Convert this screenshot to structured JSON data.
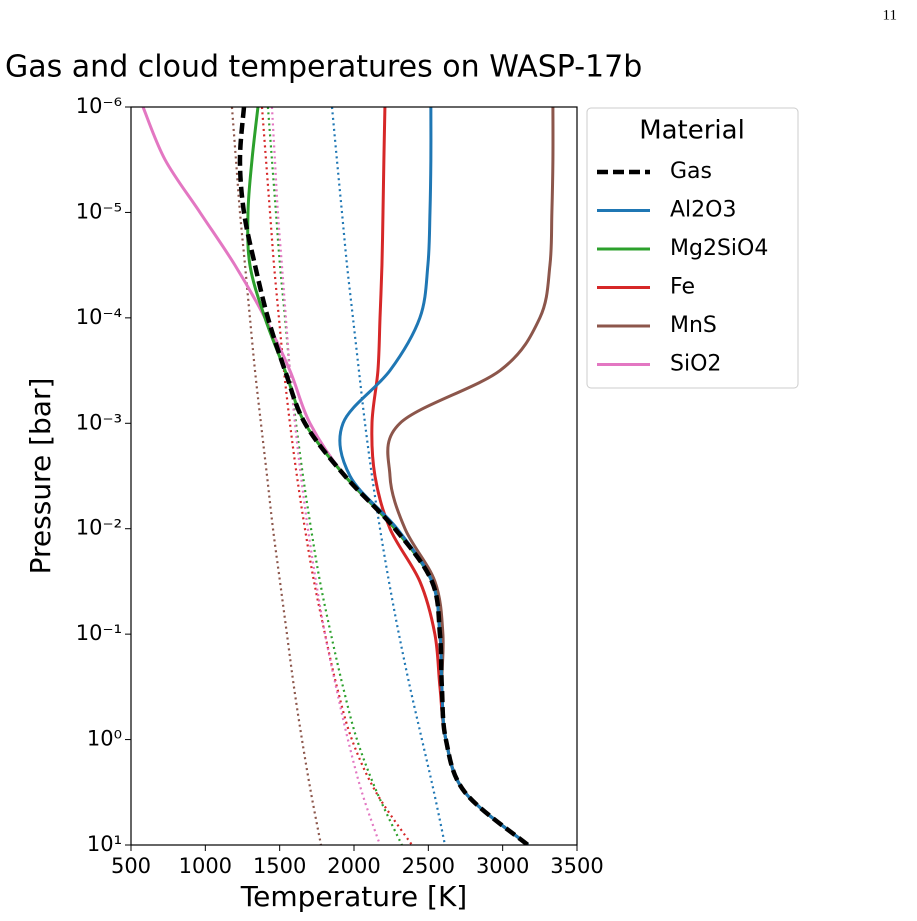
{
  "page_number": "11",
  "chart_data": {
    "type": "line",
    "title": "Gas and cloud temperatures on WASP-17b",
    "x_label": "Temperature [K]",
    "y_label": "Pressure [bar]",
    "xlim": [
      500,
      3500
    ],
    "xticks": [
      500,
      1000,
      1500,
      2000,
      2500,
      3000,
      3500
    ],
    "ylim": [
      1e-06,
      10
    ],
    "y_scale": "log",
    "y_inverted": true,
    "yticks": [
      {
        "value": 1e-06,
        "label": "10⁻⁶"
      },
      {
        "value": 1e-05,
        "label": "10⁻⁵"
      },
      {
        "value": 0.0001,
        "label": "10⁻⁴"
      },
      {
        "value": 0.001,
        "label": "10⁻³"
      },
      {
        "value": 0.01,
        "label": "10⁻²"
      },
      {
        "value": 0.1,
        "label": "10⁻¹"
      },
      {
        "value": 1,
        "label": "10⁰"
      },
      {
        "value": 10,
        "label": "10¹"
      }
    ],
    "legend_title": "Material",
    "legend_position": "outside-right",
    "y": [
      1e-06,
      3.16e-06,
      1e-05,
      3.16e-05,
      0.0001,
      0.000316,
      0.001,
      0.00316,
      0.01,
      0.0316,
      0.1,
      0.316,
      1,
      3.16,
      10
    ],
    "series": [
      {
        "name": "Gas",
        "color": "#000000",
        "style": "dashed",
        "values": [
          1260,
          1233,
          1260,
          1334,
          1421,
          1536,
          1670,
          1939,
          2275,
          2524,
          2578,
          2591,
          2618,
          2746,
          3170
        ]
      },
      {
        "name": "Al2O3",
        "color": "#1f77b4",
        "style": "solid",
        "values": [
          2517,
          2517,
          2511,
          2497,
          2443,
          2242,
          1926,
          1973,
          2290,
          2524,
          2578,
          2591,
          2618,
          2746,
          3170
        ]
      },
      {
        "name": "Mg2SiO4",
        "color": "#2ca02c",
        "style": "solid",
        "values": [
          1354,
          1314,
          1287,
          1300,
          1401,
          1536,
          1670,
          1939,
          2275,
          2524,
          2578,
          2591,
          2618,
          2746,
          3170
        ]
      },
      {
        "name": "Fe",
        "color": "#d62728",
        "style": "solid",
        "values": [
          2208,
          2201,
          2195,
          2188,
          2175,
          2161,
          2121,
          2141,
          2242,
          2443,
          2544,
          2578,
          2618,
          2746,
          3170
        ]
      },
      {
        "name": "MnS",
        "color": "#8c564b",
        "style": "solid",
        "values": [
          3338,
          3338,
          3331,
          3318,
          3250,
          2982,
          2309,
          2242,
          2343,
          2544,
          2598,
          2591,
          2618,
          2746,
          3170
        ]
      },
      {
        "name": "SiO2",
        "color": "#e377c2",
        "style": "solid",
        "values": [
          581,
          729,
          964,
          1199,
          1401,
          1569,
          1704,
          1939,
          2275,
          2524,
          2578,
          2591,
          2618,
          2746,
          3170
        ]
      },
      {
        "color": "#1f77b4",
        "style": "dotted",
        "values": [
          1852,
          1885,
          1919,
          1953,
          1993,
          2033,
          2074,
          2121,
          2175,
          2235,
          2302,
          2376,
          2457,
          2538,
          2612
        ]
      },
      {
        "color": "#2ca02c",
        "style": "dotted",
        "values": [
          1421,
          1448,
          1475,
          1502,
          1536,
          1569,
          1610,
          1657,
          1711,
          1771,
          1845,
          1926,
          2020,
          2154,
          2322
        ]
      },
      {
        "color": "#d62728",
        "style": "dotted",
        "values": [
          1381,
          1408,
          1435,
          1462,
          1495,
          1529,
          1569,
          1616,
          1670,
          1731,
          1805,
          1885,
          1986,
          2148,
          2390
        ]
      },
      {
        "color": "#8c564b",
        "style": "dotted",
        "values": [
          1179,
          1206,
          1233,
          1267,
          1300,
          1334,
          1374,
          1415,
          1455,
          1502,
          1549,
          1596,
          1650,
          1710,
          1778
        ]
      },
      {
        "color": "#e377c2",
        "style": "dotted",
        "values": [
          1448,
          1468,
          1488,
          1515,
          1542,
          1569,
          1603,
          1643,
          1690,
          1744,
          1805,
          1879,
          1959,
          2053,
          2175
        ]
      }
    ]
  }
}
